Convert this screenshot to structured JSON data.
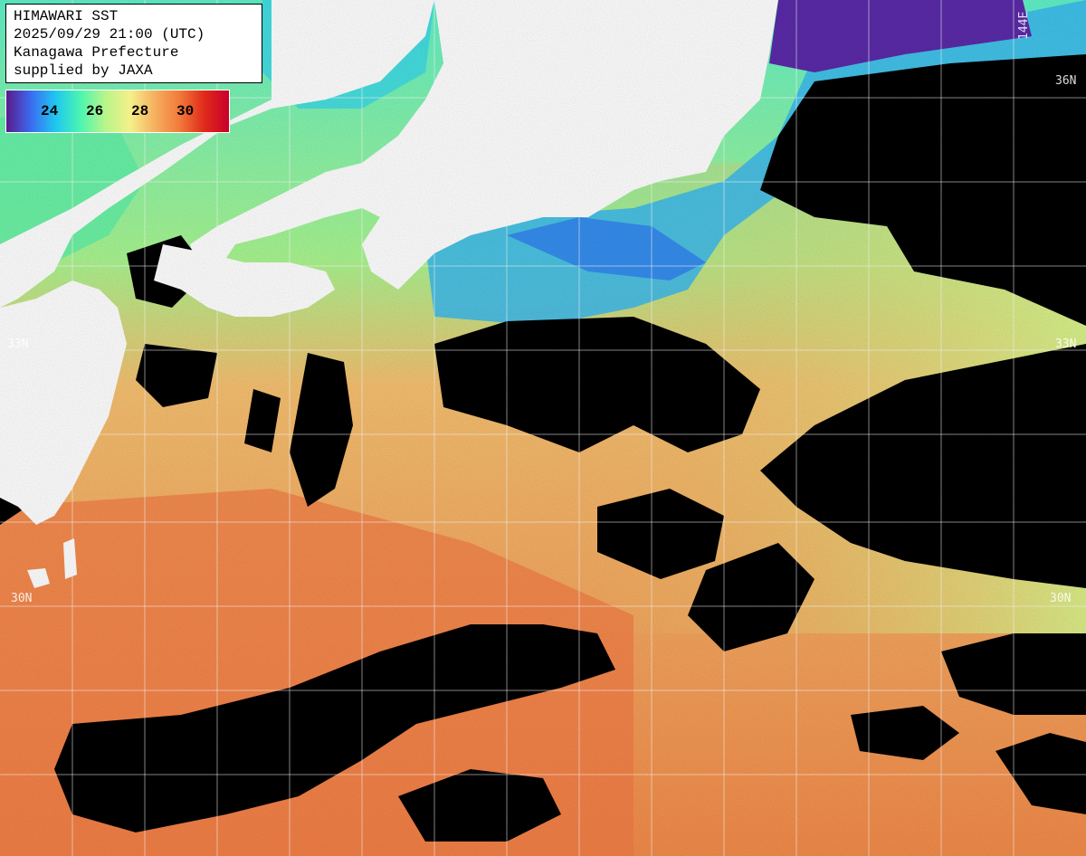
{
  "header": {
    "title": "HIMAWARI SST",
    "datetime": "2025/09/29 21:00 (UTC)",
    "organization": "Kanagawa Prefecture",
    "credit": "supplied by JAXA"
  },
  "colorbar": {
    "ticks": [
      "24",
      "26",
      "28",
      "30"
    ],
    "colors": [
      "#5a1a8c",
      "#3b6cf0",
      "#1fc8f0",
      "#4cf5b0",
      "#b8f58a",
      "#f5f08a",
      "#f5b060",
      "#f27a3a",
      "#e02a1a",
      "#c8002a"
    ]
  },
  "grid": {
    "lat_labels": [
      "36N",
      "33N",
      "33N",
      "30N",
      "30N"
    ],
    "lon_labels": [
      "144E"
    ]
  },
  "colors": {
    "land": "#ffffff",
    "cloud": "#000000",
    "cold": "#2f7ff0",
    "cool": "#5ff0c8",
    "mild": "#c8f58a",
    "warm": "#f5c070",
    "hot": "#f2844a"
  }
}
